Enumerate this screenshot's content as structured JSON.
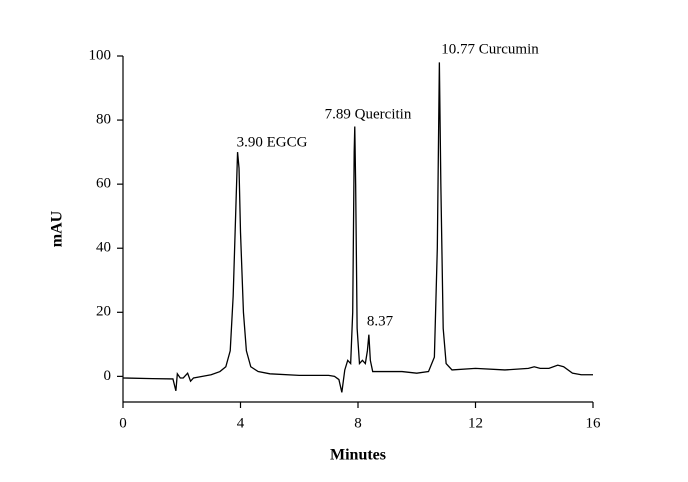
{
  "chart_data": {
    "type": "line",
    "x_label": "Minutes",
    "y_label": "mAU",
    "xlim": [
      0,
      16
    ],
    "xticks": [
      0,
      4,
      8,
      12,
      16
    ],
    "ylim": [
      -8,
      100
    ],
    "yticks": [
      0,
      20,
      40,
      60,
      80,
      100
    ],
    "color": "#000000",
    "x": [
      0,
      1,
      1.7,
      1.8,
      1.85,
      1.95,
      2.05,
      2.2,
      2.3,
      2.4,
      2.7,
      3.0,
      3.3,
      3.5,
      3.65,
      3.75,
      3.85,
      3.9,
      3.95,
      4.0,
      4.1,
      4.2,
      4.35,
      4.6,
      5,
      6,
      7,
      7.2,
      7.35,
      7.45,
      7.55,
      7.65,
      7.75,
      7.82,
      7.87,
      7.89,
      7.92,
      7.97,
      8.05,
      8.15,
      8.25,
      8.32,
      8.37,
      8.42,
      8.5,
      9,
      9.5,
      10,
      10.4,
      10.6,
      10.7,
      10.77,
      10.82,
      10.9,
      11.0,
      11.2,
      12,
      13,
      13.8,
      14,
      14.2,
      14.5,
      14.8,
      15,
      15.3,
      15.6,
      16
    ],
    "values": [
      -0.5,
      -0.7,
      -0.8,
      -4.5,
      0.8,
      -0.5,
      -0.5,
      1,
      -1.5,
      -0.5,
      0,
      0.5,
      1.5,
      3,
      8,
      25,
      55,
      70,
      65,
      45,
      20,
      8,
      3,
      1.5,
      0.8,
      0.3,
      0.3,
      0,
      -1,
      -5,
      2,
      5,
      4,
      20,
      70,
      78,
      60,
      15,
      4,
      5,
      4,
      8,
      13,
      5,
      1.5,
      1.5,
      1.5,
      1,
      1.5,
      6,
      40,
      98,
      60,
      15,
      4,
      2,
      2.5,
      2,
      2.5,
      3,
      2.5,
      2.5,
      3.5,
      3,
      1,
      0.5,
      0.5
    ],
    "annotations": [
      "3.90 EGCG",
      "7.89 Quercitin",
      "8.37",
      "10.77 Curcumin"
    ]
  }
}
